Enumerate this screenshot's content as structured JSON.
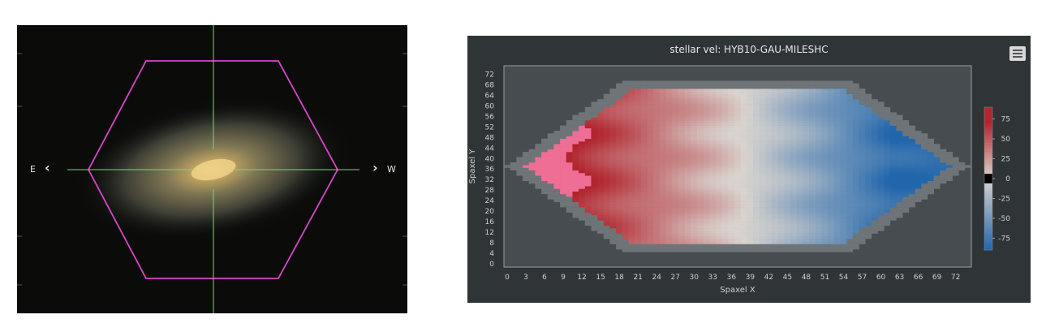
{
  "image_panel": {
    "east_label": "E",
    "west_label": "W",
    "left_arrow": "‹",
    "right_arrow": "›",
    "hex_color": "#d946c8",
    "crosshair_color": "#7fd17f"
  },
  "map_panel": {
    "menu_icon": "hamburger-icon",
    "colors": {
      "background": "#2f3436",
      "plot_bg": "#464c4f",
      "positive": "#c0282d",
      "negative": "#2166ac",
      "zero": "#d9d4cf"
    }
  },
  "chart_data": {
    "type": "heatmap",
    "title": "stellar vel: HYB10-GAU-MILESHC",
    "xlabel": "Spaxel X",
    "ylabel": "Spaxel Y",
    "xlim": [
      0,
      74
    ],
    "ylim": [
      0,
      74
    ],
    "x_ticks": [
      "0",
      "3",
      "6",
      "9",
      "12",
      "15",
      "18",
      "21",
      "24",
      "27",
      "30",
      "33",
      "36",
      "39",
      "42",
      "45",
      "48",
      "51",
      "54",
      "57",
      "60",
      "63",
      "66",
      "69",
      "72"
    ],
    "y_ticks": [
      "0",
      "4",
      "8",
      "12",
      "16",
      "20",
      "24",
      "28",
      "32",
      "36",
      "40",
      "44",
      "48",
      "52",
      "56",
      "60",
      "64",
      "68",
      "72"
    ],
    "colorbar_ticks": [
      "75",
      "50",
      "25",
      "0",
      "-25",
      "-50",
      "-75"
    ],
    "colorbar_range": [
      -90,
      90
    ],
    "velocity_gradient": {
      "x_at_max": 6,
      "x_at_zero": 38,
      "x_at_min": 62,
      "max_value": 85,
      "min_value": -85
    },
    "footprint": {
      "center": [
        37,
        37
      ],
      "half_width": 34,
      "half_height": 29,
      "shape": "hexagon"
    }
  }
}
